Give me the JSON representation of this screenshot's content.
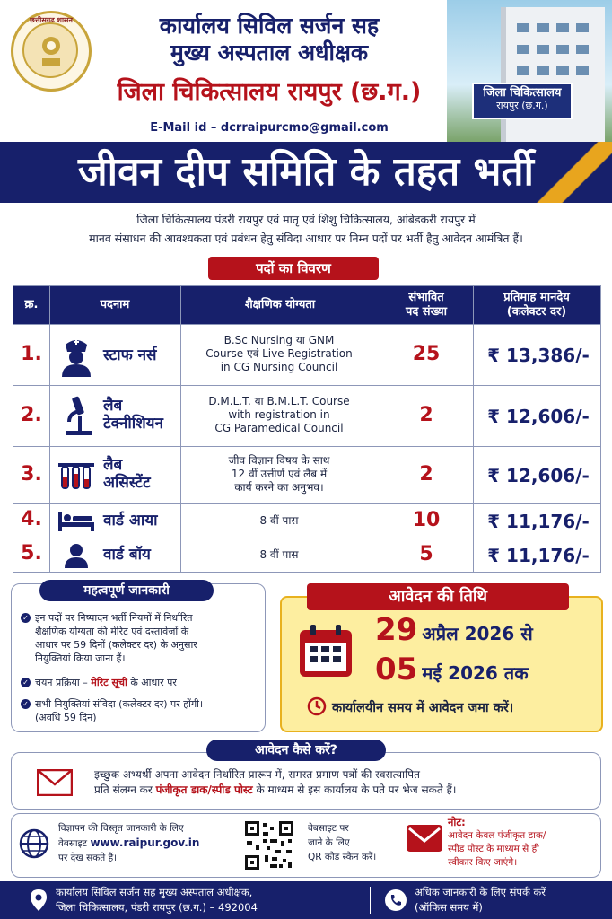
{
  "header": {
    "emblem_text": "छत्तीसगढ़ शासन",
    "line1": "कार्यालय सिविल सर्जन सह",
    "line2": "मुख्य अस्पताल अधीक्षक",
    "line3": "जिला चिकित्सालय रायपुर (छ.ग.)",
    "email": "E-Mail id – dcrraipurcmo@gmail.com",
    "building_sign_title": "जिला चिकित्सालय",
    "building_sign_sub": "रायपुर (छ.ग.)"
  },
  "title": "जीवन दीप समिति के तहत भर्ती",
  "intro": {
    "line1": "जिला चिकित्सालय पंडरी रायपुर एवं मातृ एवं शिशु चिकित्सालय, आंबेडकरी रायपुर में",
    "line2": "मानव संसाधन की आवश्यकता एवं प्रबंधन हेतु संविदा आधार पर निम्न पदों पर भर्ती हैतु आवेदन आमंत्रित हैं।"
  },
  "posts_section_title": "पदों का विवरण",
  "table": {
    "headers": {
      "sno": "क्र.",
      "post": "पदनाम",
      "qualification": "शैक्षणिक योग्यता",
      "count_1": "संभावित",
      "count_2": "पद संख्या",
      "pay_1": "प्रतिमाह मानदेय",
      "pay_2": "(कलेक्टर दर)"
    },
    "rows": [
      {
        "sno": "1.",
        "post_1": "स्टाफ नर्स",
        "post_2": "",
        "qual_1": "B.Sc Nursing या GNM",
        "qual_2": "Course एवं Live Registration",
        "qual_3": "in CG Nursing Council",
        "count": "25",
        "pay": "₹ 13,386/-",
        "icon": "nurse-icon"
      },
      {
        "sno": "2.",
        "post_1": "लैब",
        "post_2": "टेक्नीशियन",
        "qual_1": "D.M.L.T. या B.M.L.T. Course",
        "qual_2": "with registration in",
        "qual_3": "CG Paramedical Council",
        "count": "2",
        "pay": "₹ 12,606/-",
        "icon": "microscope-icon"
      },
      {
        "sno": "3.",
        "post_1": "लैब",
        "post_2": "असिस्टेंट",
        "qual_1": "जीव विज्ञान विषय के साथ",
        "qual_2": "12 वीं उत्तीर्ण एवं लैब में",
        "qual_3": "कार्य करने का अनुभव।",
        "count": "2",
        "pay": "₹ 12,606/-",
        "icon": "test-tubes-icon"
      },
      {
        "sno": "4.",
        "post_1": "वार्ड आया",
        "post_2": "",
        "qual_1": "8 वीं पास",
        "qual_2": "",
        "qual_3": "",
        "count": "10",
        "pay": "₹ 11,176/-",
        "icon": "hospital-bed-icon"
      },
      {
        "sno": "5.",
        "post_1": "वार्ड बॉय",
        "post_2": "",
        "qual_1": "8 वीं पास",
        "qual_2": "",
        "qual_3": "",
        "count": "5",
        "pay": "₹ 11,176/-",
        "icon": "person-icon"
      }
    ]
  },
  "info": {
    "title": "महत्वपूर्ण जानकारी",
    "item1_l1": "इन पदों पर निष्पादन भर्ती नियमों में निर्धारित",
    "item1_l2": "शैक्षणिक योग्यता की मेरिट एवं दस्तावेजों के",
    "item1_l3": "आधार पर 59 दिनों (कलेक्टर दर) के अनुसार",
    "item1_l4": "नियुक्तियां किया जाना हैं।",
    "item2_a": "चयन प्रक्रिया – ",
    "item2_b": "मेरिट सूची",
    "item2_c": " के आधार पर।",
    "item3_l1": "सभी नियुक्तियां संविदा (कलेक्टर दर) पर होंगी।",
    "item3_l2": "(अवधि 59 दिन)"
  },
  "dates": {
    "title": "आवेदन की तिथि",
    "from_day": "29",
    "from_rest": "अप्रैल 2026 से",
    "to_day": "05",
    "to_rest": "मई 2026 तक",
    "note": "कार्यालयीन समय में आवेदन जमा करें।"
  },
  "how": {
    "title": "आवेदन कैसे करें?",
    "line1": "इच्छुक अभ्यर्थी अपना आवेदन निर्धारित प्रारूप में, समस्त प्रमाण पत्रों की स्वसत्यापित",
    "line2_a": "प्रति संलग्न कर ",
    "line2_b": "पंजीकृत डाक/स्पीड पोस्ट",
    "line2_c": " के माध्यम से इस कार्यालय के पते पर भेज सकते हैं।"
  },
  "web": {
    "line1": "विज्ञापन की विस्तृत जानकारी के लिए",
    "line2_a": "वेबसाइट ",
    "line2_b": "www.raipur.gov.in",
    "line3": "पर देख सकते हैं।",
    "qr_1": "वेबसाइट पर",
    "qr_2": "जाने के लिए",
    "qr_3": "QR कोड स्कैन करें।",
    "note_title": "नोट:",
    "note_1": "आवेदन केवल पंजीकृत डाक/",
    "note_2": "स्पीड पोस्ट के माध्यम से ही",
    "note_3": "स्वीकार किए जाएंगे।"
  },
  "footer": {
    "addr_1": "कार्यालय सिविल सर्जन सह मुख्य अस्पताल अधीक्षक,",
    "addr_2": "जिला चिकित्सालय, पंडरी रायपुर (छ.ग.) – 492004",
    "contact_1": "अधिक जानकारी के लिए संपर्क करें",
    "contact_2": "(ऑफिस समय में)"
  },
  "colors": {
    "navy": "#17206b",
    "red": "#b5121b",
    "yellow": "#fdeea0",
    "gold": "#e8b11e"
  }
}
